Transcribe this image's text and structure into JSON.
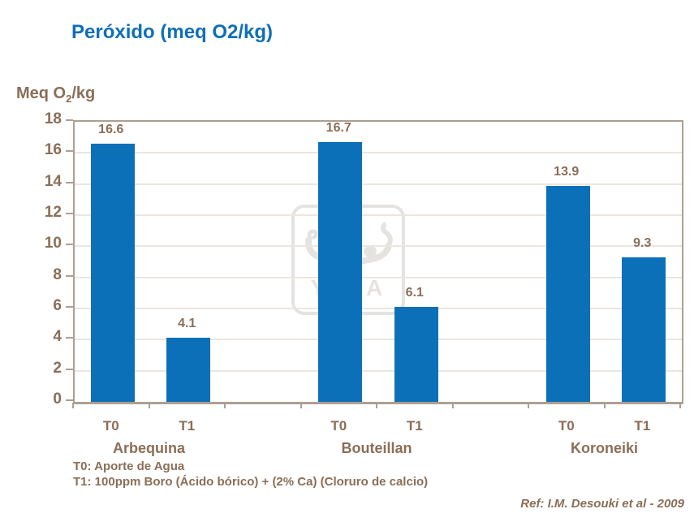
{
  "slide": {
    "title": "Peróxido (meq O2/kg)",
    "footnote_t0": "T0: Aporte de Agua",
    "footnote_t1": "T1: 100ppm Boro (Ácido bórico) + (2% Ca) (Cloruro de calcio)",
    "reference": "Ref: I.M. Desouki et al - 2009",
    "watermark_text": "YARA"
  },
  "colors": {
    "title_blue": "#0e6fb8",
    "bar_blue": "#0c70b8",
    "text_brown": "#8a6e57",
    "axis_tan": "#ac9f92",
    "gridline": "#ece6e0",
    "watermark_gray": "#e5e3e0"
  },
  "chart_data": {
    "type": "bar",
    "title": "Peróxido (meq O2/kg)",
    "ylabel_prefix": "Meq O",
    "ylabel_sub": "2",
    "ylabel_suffix": "/kg",
    "ylim": [
      0,
      18
    ],
    "ytick_step": 2,
    "yticks": [
      0,
      2,
      4,
      6,
      8,
      10,
      12,
      14,
      16,
      18
    ],
    "grid": "horizontal",
    "legend": "none",
    "categories": [
      "T0",
      "T1"
    ],
    "groups": [
      {
        "name": "Arbequina",
        "bars": [
          {
            "label": "T0",
            "value": 16.6
          },
          {
            "label": "T1",
            "value": 4.1
          }
        ]
      },
      {
        "name": "Bouteillan",
        "bars": [
          {
            "label": "T0",
            "value": 16.7
          },
          {
            "label": "T1",
            "value": 6.1
          }
        ]
      },
      {
        "name": "Koroneiki",
        "bars": [
          {
            "label": "T0",
            "value": 13.9
          },
          {
            "label": "T1",
            "value": 9.3
          }
        ]
      }
    ]
  }
}
